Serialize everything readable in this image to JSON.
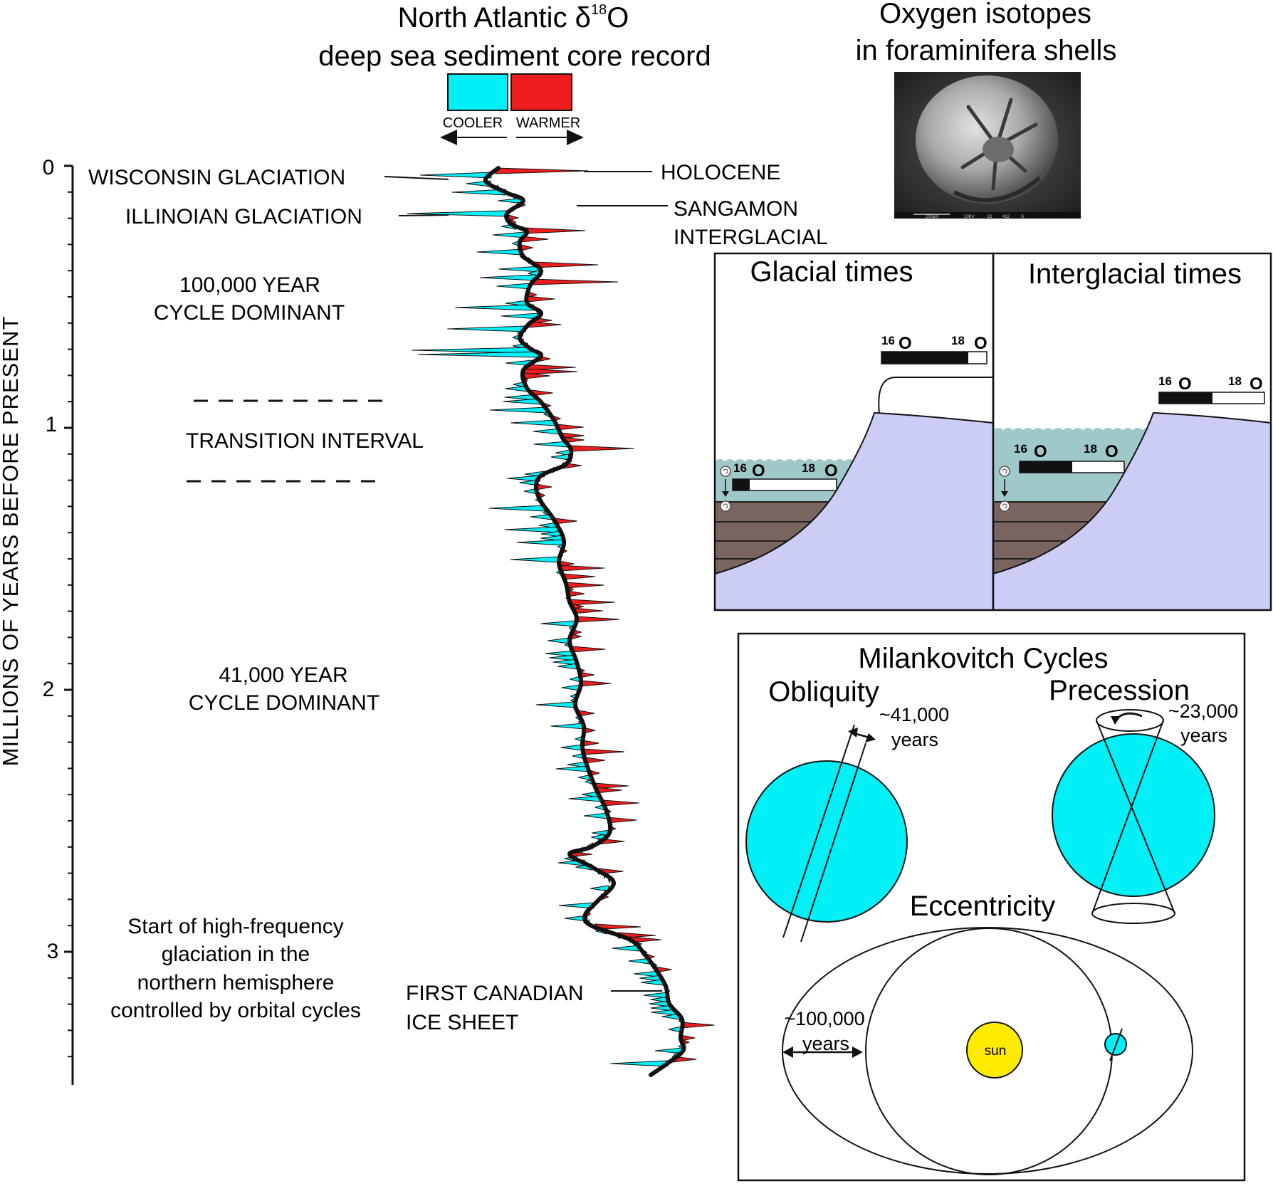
{
  "title": {
    "line1_prefix": "North Atlantic δ",
    "line1_sup": "18",
    "line1_suffix": "O",
    "line2": "deep sea sediment core record"
  },
  "legend": {
    "cooler_label": "COOLER",
    "warmer_label": "WARMER",
    "cooler_color": "#00f0f8",
    "warmer_color": "#ee1c1c"
  },
  "axis": {
    "label": "MILLIONS OF YEARS BEFORE PRESENT",
    "ticks": [
      "0",
      "1",
      "2",
      "3"
    ]
  },
  "events": {
    "wisconsin": "WISCONSIN GLACIATION",
    "illinoian": "ILLINOIAN GLACIATION",
    "holocene": "HOLOCENE",
    "sangamon_1": "SANGAMON",
    "sangamon_2": "INTERGLACIAL",
    "first_canadian_1": "FIRST CANADIAN",
    "first_canadian_2": "ICE SHEET"
  },
  "periods": {
    "cycle100_1": "100,000 YEAR",
    "cycle100_2": "CYCLE DOMINANT",
    "transition": "TRANSITION INTERVAL",
    "cycle41_1": "41,000 YEAR",
    "cycle41_2": "CYCLE DOMINANT",
    "start_1": "Start of high-frequency",
    "start_2": "glaciation in the",
    "start_3": "northern hemisphere",
    "start_4": "controlled by orbital cycles"
  },
  "forams": {
    "title_1": "Oxygen isotopes",
    "title_2": "in foraminifera shells",
    "scale_1": "100μm",
    "scale_2": "10KV",
    "scale_3": "81",
    "scale_4": "412",
    "scale_5": "S"
  },
  "isotopes": {
    "glacial_title": "Glacial times",
    "interglacial_title": "Interglacial times",
    "o16": "16",
    "o18": "18",
    "o": "O",
    "ocean_color": "#9fc8c8",
    "land_color": "#cccdf6"
  },
  "milankovitch": {
    "title": "Milankovitch Cycles",
    "obliquity": "Obliquity",
    "obliquity_period_1": "~41,000",
    "obliquity_period_2": "years",
    "precession": "Precession",
    "precession_period_1": "~23,000",
    "precession_period_2": "years",
    "eccentricity": "Eccentricity",
    "eccentricity_period_1": "~100,000",
    "eccentricity_period_2": "years",
    "sun_label": "sun",
    "sun_color": "#ffea00",
    "earth_color": "#00f0f8"
  }
}
